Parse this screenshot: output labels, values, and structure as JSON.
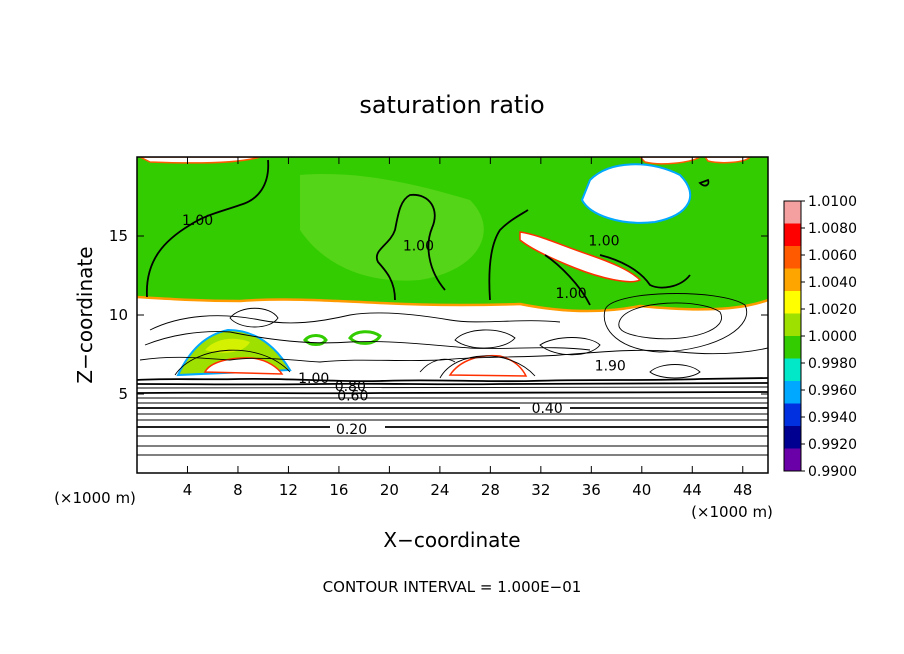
{
  "chart_data": {
    "type": "heatmap",
    "title": "saturation ratio",
    "xlabel": "X−coordinate",
    "ylabel": "Z−coordinate",
    "x_unit_left": "(×1000 m)",
    "x_unit_right": "(×1000 m)",
    "footer": "CONTOUR INTERVAL = 1.000E−01",
    "xlim": [
      0,
      50
    ],
    "ylim": [
      0,
      20
    ],
    "x_ticks": [
      4,
      8,
      12,
      16,
      20,
      24,
      28,
      32,
      36,
      40,
      44,
      48
    ],
    "y_ticks": [
      5,
      10,
      15
    ],
    "colorbar": {
      "labels": [
        "1.0100",
        "1.0080",
        "1.0060",
        "1.0040",
        "1.0020",
        "1.0000",
        "0.9980",
        "0.9960",
        "0.9940",
        "0.9920",
        "0.9900"
      ],
      "colors": [
        "#f5a0a0",
        "#ff0000",
        "#ff5a00",
        "#ffa500",
        "#ffff00",
        "#9ee000",
        "#33cc00",
        "#00e8c8",
        "#00a8ff",
        "#0030e0",
        "#000090",
        "#6a00a8"
      ]
    },
    "contour_labels": [
      {
        "text": "1.00",
        "x": 4.8,
        "y": 16.0
      },
      {
        "text": "1.00",
        "x": 22.3,
        "y": 14.4
      },
      {
        "text": "1.00",
        "x": 37.0,
        "y": 14.7
      },
      {
        "text": "1.00",
        "x": 34.4,
        "y": 11.4
      },
      {
        "text": "1.90",
        "x": 37.5,
        "y": 6.8
      },
      {
        "text": "1.00",
        "x": 14.0,
        "y": 6.0
      },
      {
        "text": "0.80",
        "x": 16.9,
        "y": 5.5
      },
      {
        "text": "0.60",
        "x": 17.1,
        "y": 4.9
      },
      {
        "text": "0.40",
        "x": 32.5,
        "y": 4.1
      },
      {
        "text": "0.20",
        "x": 17.0,
        "y": 2.8
      }
    ]
  }
}
